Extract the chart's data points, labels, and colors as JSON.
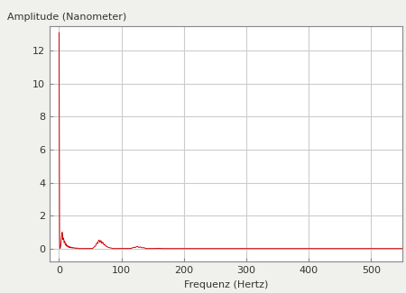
{
  "title": "",
  "xlabel": "Frequenz (Hertz)",
  "ylabel": "Amplitude (Nanometer)",
  "xlim": [
    -15,
    550
  ],
  "ylim": [
    -0.8,
    13.5
  ],
  "yticks": [
    0,
    2,
    4,
    6,
    8,
    10,
    12
  ],
  "xticks": [
    0,
    100,
    200,
    300,
    400,
    500
  ],
  "line_color": "#cc0000",
  "bg_color": "#f0f0ec",
  "plot_bg": "#ffffff",
  "grid_color": "#cccccc",
  "border_color": "#888888",
  "noise_floor": 0.005,
  "freq_max": 550,
  "figsize": [
    4.5,
    3.25
  ],
  "dpi": 100
}
